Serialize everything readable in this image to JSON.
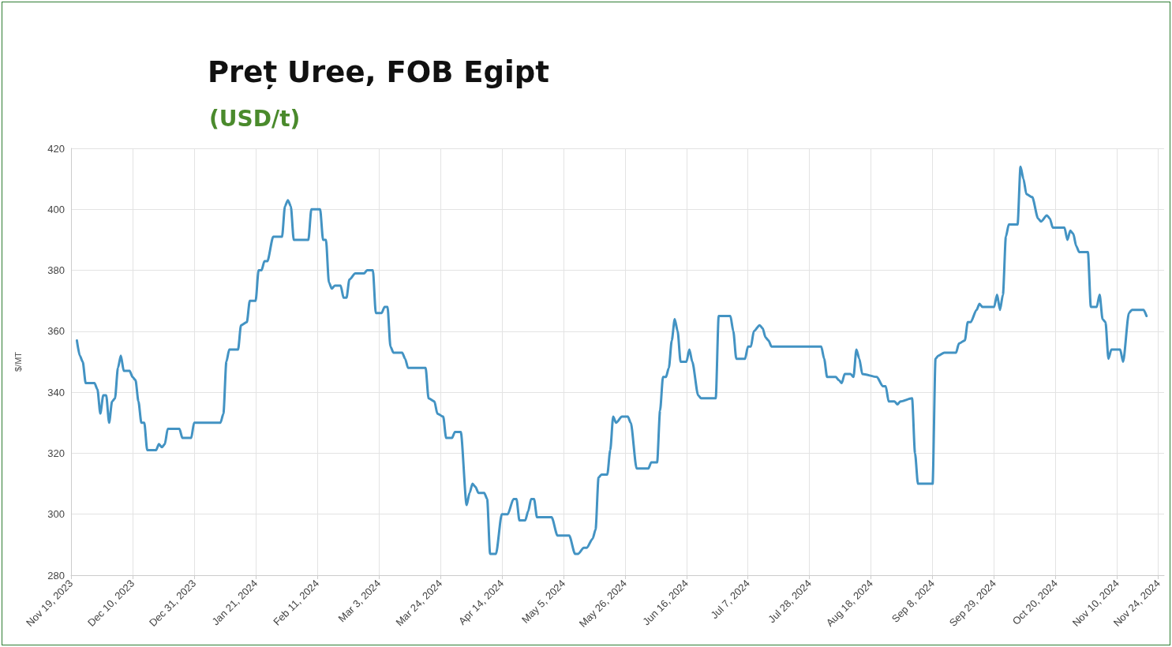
{
  "chart_data": {
    "type": "line",
    "title": "Preț Uree, FOB Egipt",
    "subtitle": "(USD/t)",
    "ylabel": "$/MT",
    "series": [
      {
        "color": "#4393c3",
        "x": [
          "2023-11-21",
          "2023-11-22",
          "2023-11-23",
          "2023-11-24",
          "2023-11-27",
          "2023-11-28",
          "2023-11-29",
          "2023-11-30",
          "2023-12-01",
          "2023-12-02",
          "2023-12-03",
          "2023-12-04",
          "2023-12-05",
          "2023-12-06",
          "2023-12-07",
          "2023-12-09",
          "2023-12-10",
          "2023-12-11",
          "2023-12-12",
          "2023-12-13",
          "2023-12-14",
          "2023-12-15",
          "2023-12-18",
          "2023-12-19",
          "2023-12-20",
          "2023-12-21",
          "2023-12-22",
          "2023-12-26",
          "2023-12-27",
          "2023-12-30",
          "2023-12-31",
          "2024-01-09",
          "2024-01-10",
          "2024-01-11",
          "2024-01-12",
          "2024-01-15",
          "2024-01-16",
          "2024-01-18",
          "2024-01-19",
          "2024-01-21",
          "2024-01-22",
          "2024-01-23",
          "2024-01-24",
          "2024-01-25",
          "2024-01-27",
          "2024-01-30",
          "2024-01-31",
          "2024-02-01",
          "2024-02-02",
          "2024-02-03",
          "2024-02-08",
          "2024-02-09",
          "2024-02-12",
          "2024-02-13",
          "2024-02-14",
          "2024-02-15",
          "2024-02-16",
          "2024-02-17",
          "2024-02-19",
          "2024-02-20",
          "2024-02-21",
          "2024-02-22",
          "2024-02-24",
          "2024-02-27",
          "2024-02-28",
          "2024-03-01",
          "2024-03-02",
          "2024-03-04",
          "2024-03-05",
          "2024-03-06",
          "2024-03-07",
          "2024-03-08",
          "2024-03-11",
          "2024-03-12",
          "2024-03-13",
          "2024-03-19",
          "2024-03-20",
          "2024-03-22",
          "2024-03-23",
          "2024-03-25",
          "2024-03-26",
          "2024-03-28",
          "2024-03-29",
          "2024-03-31",
          "2024-04-02",
          "2024-04-03",
          "2024-04-04",
          "2024-04-05",
          "2024-04-06",
          "2024-04-08",
          "2024-04-09",
          "2024-04-10",
          "2024-04-12",
          "2024-04-14",
          "2024-04-16",
          "2024-04-18",
          "2024-04-19",
          "2024-04-20",
          "2024-04-22",
          "2024-04-23",
          "2024-04-24",
          "2024-04-25",
          "2024-04-26",
          "2024-05-01",
          "2024-05-03",
          "2024-05-07",
          "2024-05-09",
          "2024-05-10",
          "2024-05-12",
          "2024-05-13",
          "2024-05-15",
          "2024-05-16",
          "2024-05-17",
          "2024-05-18",
          "2024-05-20",
          "2024-05-21",
          "2024-05-22",
          "2024-05-23",
          "2024-05-25",
          "2024-05-27",
          "2024-05-28",
          "2024-05-30",
          "2024-06-03",
          "2024-06-04",
          "2024-06-06",
          "2024-06-07",
          "2024-06-08",
          "2024-06-09",
          "2024-06-10",
          "2024-06-11",
          "2024-06-12",
          "2024-06-13",
          "2024-06-14",
          "2024-06-16",
          "2024-06-17",
          "2024-06-18",
          "2024-06-20",
          "2024-06-21",
          "2024-06-26",
          "2024-06-27",
          "2024-07-01",
          "2024-07-02",
          "2024-07-03",
          "2024-07-06",
          "2024-07-07",
          "2024-07-08",
          "2024-07-09",
          "2024-07-11",
          "2024-07-12",
          "2024-07-13",
          "2024-07-14",
          "2024-07-15",
          "2024-08-01",
          "2024-08-02",
          "2024-08-03",
          "2024-08-06",
          "2024-08-07",
          "2024-08-08",
          "2024-08-09",
          "2024-08-11",
          "2024-08-12",
          "2024-08-13",
          "2024-08-14",
          "2024-08-15",
          "2024-08-20",
          "2024-08-22",
          "2024-08-23",
          "2024-08-24",
          "2024-08-26",
          "2024-08-27",
          "2024-08-28",
          "2024-09-01",
          "2024-09-02",
          "2024-09-03",
          "2024-09-08",
          "2024-09-09",
          "2024-09-10",
          "2024-09-12",
          "2024-09-16",
          "2024-09-17",
          "2024-09-19",
          "2024-09-20",
          "2024-09-21",
          "2024-09-23",
          "2024-09-24",
          "2024-09-25",
          "2024-09-29",
          "2024-09-30",
          "2024-10-01",
          "2024-10-02",
          "2024-10-03",
          "2024-10-04",
          "2024-10-07",
          "2024-10-08",
          "2024-10-09",
          "2024-10-10",
          "2024-10-12",
          "2024-10-14",
          "2024-10-15",
          "2024-10-17",
          "2024-10-18",
          "2024-10-19",
          "2024-10-23",
          "2024-10-24",
          "2024-10-25",
          "2024-10-26",
          "2024-10-27",
          "2024-10-28",
          "2024-10-31",
          "2024-11-01",
          "2024-11-03",
          "2024-11-04",
          "2024-11-05",
          "2024-11-06",
          "2024-11-07",
          "2024-11-08",
          "2024-11-11",
          "2024-11-12",
          "2024-11-14",
          "2024-11-15",
          "2024-11-19",
          "2024-11-20"
        ],
        "values": [
          357,
          352,
          350,
          343,
          343,
          341,
          333,
          339,
          339,
          330,
          337,
          338,
          348,
          352,
          347,
          347,
          345,
          344,
          337,
          330,
          330,
          321,
          321,
          323,
          322,
          323,
          328,
          328,
          325,
          325,
          330,
          330,
          333,
          350,
          354,
          354,
          362,
          363,
          370,
          370,
          380,
          380,
          383,
          383,
          391,
          391,
          401,
          403,
          401,
          390,
          390,
          400,
          400,
          390,
          390,
          376,
          374,
          375,
          375,
          371,
          371,
          377,
          379,
          379,
          380,
          380,
          366,
          366,
          368,
          368,
          355,
          353,
          353,
          351,
          348,
          348,
          338,
          337,
          333,
          332,
          325,
          325,
          327,
          327,
          303,
          307,
          310,
          309,
          307,
          307,
          305,
          287,
          287,
          300,
          300,
          305,
          305,
          298,
          298,
          301,
          305,
          305,
          299,
          299,
          293,
          293,
          287,
          287,
          289,
          289,
          292,
          295,
          312,
          313,
          313,
          321,
          332,
          330,
          332,
          332,
          330,
          315,
          315,
          317,
          317,
          334,
          345,
          345,
          348,
          357,
          364,
          360,
          350,
          350,
          354,
          350,
          339,
          338,
          338,
          365,
          365,
          360,
          351,
          351,
          355,
          355,
          360,
          362,
          361,
          358,
          357,
          355,
          355,
          351,
          345,
          345,
          344,
          343,
          346,
          346,
          345,
          354,
          351,
          346,
          345,
          342,
          342,
          337,
          337,
          336,
          337,
          338,
          320,
          310,
          310,
          351,
          352,
          353,
          353,
          356,
          357,
          363,
          363,
          367,
          369,
          368,
          368,
          372,
          367,
          372,
          391,
          395,
          395,
          414,
          410,
          405,
          404,
          397,
          396,
          398,
          397,
          394,
          394,
          390,
          393,
          392,
          388,
          386,
          386,
          368,
          368,
          372,
          364,
          363,
          351,
          354,
          354,
          350,
          366,
          367,
          367,
          365
        ]
      }
    ],
    "xlim": [
      "2023-11-19",
      "2024-11-26"
    ],
    "xticks": [
      {
        "value": "2023-11-19",
        "label": "Nov 19, 2023"
      },
      {
        "value": "2023-12-10",
        "label": "Dec 10, 2023"
      },
      {
        "value": "2023-12-31",
        "label": "Dec 31, 2023"
      },
      {
        "value": "2024-01-21",
        "label": "Jan 21, 2024"
      },
      {
        "value": "2024-02-11",
        "label": "Feb 11, 2024"
      },
      {
        "value": "2024-03-03",
        "label": "Mar 3, 2024"
      },
      {
        "value": "2024-03-24",
        "label": "Mar 24, 2024"
      },
      {
        "value": "2024-04-14",
        "label": "Apr 14, 2024"
      },
      {
        "value": "2024-05-05",
        "label": "May 5, 2024"
      },
      {
        "value": "2024-05-26",
        "label": "May 26, 2024"
      },
      {
        "value": "2024-06-16",
        "label": "Jun 16, 2024"
      },
      {
        "value": "2024-07-07",
        "label": "Jul 7, 2024"
      },
      {
        "value": "2024-07-28",
        "label": "Jul 28, 2024"
      },
      {
        "value": "2024-08-18",
        "label": "Aug 18, 2024"
      },
      {
        "value": "2024-09-08",
        "label": "Sep 8, 2024"
      },
      {
        "value": "2024-09-29",
        "label": "Sep 29, 2024"
      },
      {
        "value": "2024-10-20",
        "label": "Oct 20, 2024"
      },
      {
        "value": "2024-11-10",
        "label": "Nov 10, 2024"
      },
      {
        "value": "2024-11-24",
        "label": "Nov 24, 2024"
      }
    ],
    "ylim": [
      280,
      420
    ],
    "yticks": [
      280,
      300,
      320,
      340,
      360,
      380,
      400,
      420
    ],
    "grid": true,
    "marker": "none",
    "line_style": "solid"
  }
}
